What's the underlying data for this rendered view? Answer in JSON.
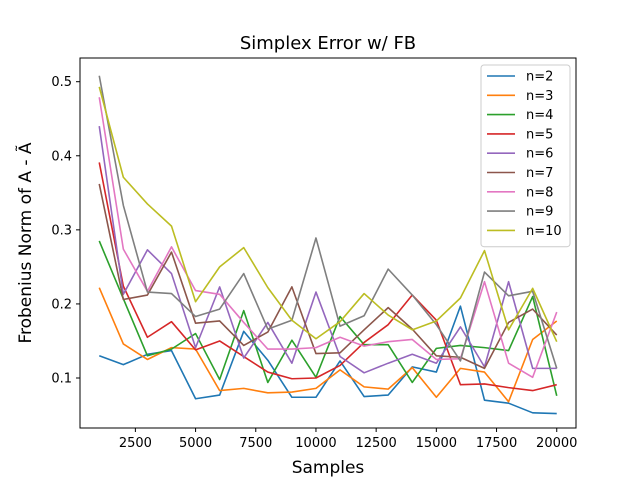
{
  "chart_data": {
    "type": "line",
    "title": "Simplex Error w/ FB",
    "xlabel": "Samples",
    "ylabel": "Frobenius Norm of A - Ã",
    "xlim": [
      200,
      20800
    ],
    "ylim": [
      0.0325,
      0.532
    ],
    "xticks": [
      2500,
      5000,
      7500,
      10000,
      12500,
      15000,
      17500,
      20000
    ],
    "xtick_labels": [
      "2500",
      "5000",
      "7500",
      "10000",
      "12500",
      "15000",
      "17500",
      "20000"
    ],
    "yticks": [
      0.1,
      0.2,
      0.3,
      0.4,
      0.5
    ],
    "ytick_labels": [
      "0.1",
      "0.2",
      "0.3",
      "0.4",
      "0.5"
    ],
    "grid": false,
    "legend_position": "top-right",
    "x": [
      1000,
      2000,
      3000,
      4000,
      5000,
      6000,
      7000,
      8000,
      9000,
      10000,
      11000,
      12000,
      13000,
      14000,
      15000,
      16000,
      17000,
      18000,
      19000,
      20000
    ],
    "series": [
      {
        "name": "n=2",
        "color": "#1f77b4",
        "values": [
          0.13,
          0.118,
          0.132,
          0.137,
          0.072,
          0.077,
          0.163,
          0.124,
          0.074,
          0.074,
          0.123,
          0.075,
          0.077,
          0.115,
          0.108,
          0.197,
          0.07,
          0.066,
          0.053,
          0.052
        ]
      },
      {
        "name": "n=3",
        "color": "#ff7f0e",
        "values": [
          0.222,
          0.146,
          0.125,
          0.141,
          0.139,
          0.083,
          0.086,
          0.08,
          0.081,
          0.086,
          0.111,
          0.088,
          0.085,
          0.114,
          0.074,
          0.113,
          0.108,
          0.068,
          0.152,
          0.177
        ]
      },
      {
        "name": "n=4",
        "color": "#2ca02c",
        "values": [
          0.285,
          0.207,
          0.13,
          0.139,
          0.16,
          0.098,
          0.191,
          0.094,
          0.151,
          0.101,
          0.183,
          0.145,
          0.145,
          0.094,
          0.14,
          0.144,
          0.141,
          0.137,
          0.21,
          0.076
        ]
      },
      {
        "name": "n=5",
        "color": "#d62728",
        "values": [
          0.391,
          0.224,
          0.155,
          0.176,
          0.138,
          0.15,
          0.129,
          0.108,
          0.099,
          0.1,
          0.117,
          0.148,
          0.172,
          0.212,
          0.178,
          0.091,
          0.092,
          0.087,
          0.083,
          0.091
        ]
      },
      {
        "name": "n=6",
        "color": "#9467bd",
        "values": [
          0.44,
          0.213,
          0.273,
          0.241,
          0.141,
          0.223,
          0.127,
          0.175,
          0.12,
          0.216,
          0.129,
          0.107,
          0.12,
          0.132,
          0.12,
          0.169,
          0.115,
          0.23,
          0.113,
          0.113
        ]
      },
      {
        "name": "n=7",
        "color": "#8c564b",
        "values": [
          0.362,
          0.206,
          0.212,
          0.27,
          0.174,
          0.177,
          0.144,
          0.162,
          0.223,
          0.133,
          0.134,
          0.165,
          0.195,
          0.166,
          0.13,
          0.128,
          0.113,
          0.175,
          0.193,
          0.158
        ]
      },
      {
        "name": "n=8",
        "color": "#e377c2",
        "values": [
          0.479,
          0.274,
          0.217,
          0.277,
          0.218,
          0.213,
          0.175,
          0.139,
          0.139,
          0.141,
          0.155,
          0.143,
          0.149,
          0.152,
          0.125,
          0.126,
          0.23,
          0.12,
          0.101,
          0.189
        ]
      },
      {
        "name": "n=9",
        "color": "#7f7f7f",
        "values": [
          0.508,
          0.333,
          0.216,
          0.214,
          0.183,
          0.193,
          0.241,
          0.166,
          0.178,
          0.289,
          0.17,
          0.184,
          0.247,
          0.212,
          0.172,
          0.123,
          0.243,
          0.211,
          0.217,
          0.113
        ]
      },
      {
        "name": "n=10",
        "color": "#bcbd22",
        "values": [
          0.493,
          0.371,
          0.335,
          0.305,
          0.203,
          0.25,
          0.276,
          0.222,
          0.178,
          0.153,
          0.176,
          0.214,
          0.185,
          0.165,
          0.177,
          0.208,
          0.272,
          0.165,
          0.221,
          0.149
        ]
      }
    ]
  }
}
